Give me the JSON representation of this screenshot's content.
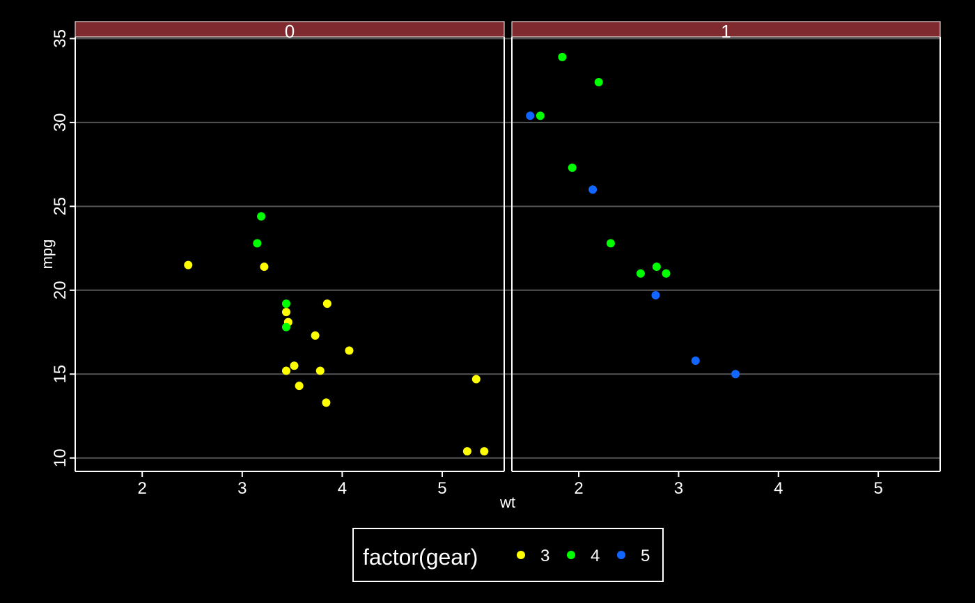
{
  "chart_data": {
    "type": "scatter",
    "title": "",
    "xlabel": "wt",
    "ylabel": "mpg",
    "facet_var": "am",
    "panels": [
      "0",
      "1"
    ],
    "xlim": [
      1.33,
      5.62
    ],
    "ylim": [
      9.2,
      35.1
    ],
    "x_ticks": [
      2,
      3,
      4,
      5
    ],
    "y_ticks": [
      10,
      15,
      20,
      25,
      30,
      35
    ],
    "grid": "horizontal",
    "colors": {
      "background": "#000000",
      "strip": "#7f2a2e",
      "gridline": "#555555",
      "axis": "#ffffff",
      "panel_border": "#ffffff"
    },
    "legend": {
      "title": "factor(gear)",
      "position": "bottom",
      "entries": [
        {
          "label": "3",
          "color": "#ffff00"
        },
        {
          "label": "4",
          "color": "#00ff00"
        },
        {
          "label": "5",
          "color": "#1166ff"
        }
      ]
    },
    "series": [
      {
        "gear": "3",
        "color": "#ffff00",
        "panel": "0",
        "points": [
          [
            2.46,
            21.5
          ],
          [
            3.22,
            21.4
          ],
          [
            3.44,
            18.7
          ],
          [
            3.46,
            18.1
          ],
          [
            3.57,
            14.3
          ],
          [
            4.07,
            16.4
          ],
          [
            3.73,
            17.3
          ],
          [
            3.78,
            15.2
          ],
          [
            5.25,
            10.4
          ],
          [
            5.42,
            10.4
          ],
          [
            5.34,
            14.7
          ],
          [
            3.52,
            15.5
          ],
          [
            3.44,
            15.2
          ],
          [
            3.84,
            13.3
          ],
          [
            3.85,
            19.2
          ]
        ]
      },
      {
        "gear": "4",
        "color": "#00ff00",
        "panel": "0",
        "points": [
          [
            3.19,
            24.4
          ],
          [
            3.15,
            22.8
          ],
          [
            3.44,
            19.2
          ],
          [
            3.44,
            17.8
          ]
        ]
      },
      {
        "gear": "4",
        "color": "#00ff00",
        "panel": "1",
        "points": [
          [
            2.62,
            21.0
          ],
          [
            2.875,
            21.0
          ],
          [
            2.32,
            22.8
          ],
          [
            2.2,
            32.4
          ],
          [
            1.615,
            30.4
          ],
          [
            1.835,
            33.9
          ],
          [
            1.935,
            27.3
          ],
          [
            2.78,
            21.4
          ]
        ]
      },
      {
        "gear": "5",
        "color": "#1166ff",
        "panel": "1",
        "points": [
          [
            2.14,
            26.0
          ],
          [
            1.513,
            30.4
          ],
          [
            3.17,
            15.8
          ],
          [
            2.77,
            19.7
          ],
          [
            3.57,
            15.0
          ]
        ]
      }
    ]
  }
}
